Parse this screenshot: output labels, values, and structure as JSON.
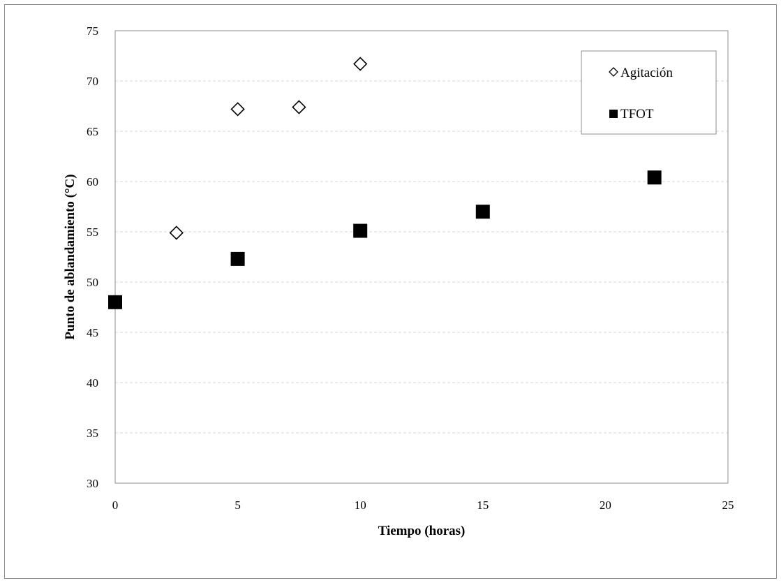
{
  "chart_data": {
    "type": "scatter",
    "xlabel": "Tiempo (horas)",
    "ylabel": "Punto de ablandamiento (°C)",
    "xlim": [
      0,
      25
    ],
    "ylim": [
      30,
      75
    ],
    "xticks": [
      0,
      5,
      10,
      15,
      20,
      25
    ],
    "yticks": [
      30,
      35,
      40,
      45,
      50,
      55,
      60,
      65,
      70,
      75
    ],
    "grid": "horizontal-dashed",
    "legend_position": "top-right",
    "series": [
      {
        "name": "Agitación",
        "marker": "diamond-open",
        "color": "#000000",
        "x": [
          2.5,
          5,
          7.5,
          10
        ],
        "y": [
          54.9,
          67.2,
          67.4,
          71.7
        ]
      },
      {
        "name": "TFOT",
        "marker": "square-filled",
        "color": "#000000",
        "x": [
          0,
          5,
          10,
          15,
          22
        ],
        "y": [
          48.0,
          52.3,
          55.1,
          57.0,
          60.4
        ]
      }
    ]
  }
}
